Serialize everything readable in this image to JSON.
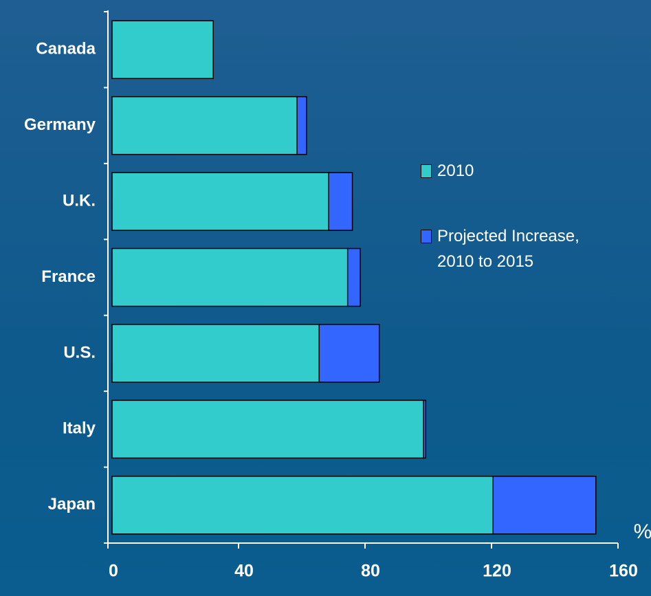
{
  "chart_data": {
    "type": "bar",
    "orientation": "horizontal",
    "stacked": true,
    "categories": [
      "Canada",
      "Germany",
      "U.K.",
      "France",
      "U.S.",
      "Italy",
      "Japan"
    ],
    "series": [
      {
        "name": "2010",
        "color": "#33cccc",
        "values": [
          32,
          58.5,
          68.5,
          74.5,
          65.5,
          98.5,
          120.5
        ]
      },
      {
        "name": "Projected Increase, 2010 to 2015",
        "color": "#3366ff",
        "values": [
          0,
          3,
          7.5,
          4,
          19,
          0.7,
          32.5
        ]
      }
    ],
    "x_label": "%",
    "xlim": [
      0,
      160
    ],
    "xticks": [
      0,
      40,
      80,
      120,
      160
    ]
  }
}
